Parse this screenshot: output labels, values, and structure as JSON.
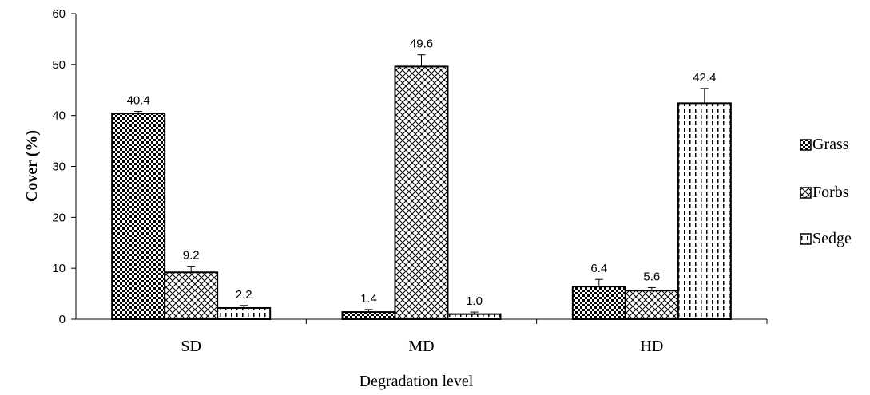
{
  "chart_data": {
    "type": "bar",
    "categories": [
      "SD",
      "MD",
      "HD"
    ],
    "series": [
      {
        "name": "Grass",
        "values": [
          40.4,
          1.4,
          6.4
        ],
        "errors": [
          0.4,
          0.5,
          1.4
        ],
        "labels": [
          "40.4",
          "1.4",
          "6.4"
        ]
      },
      {
        "name": "Forbs",
        "values": [
          9.2,
          49.6,
          5.6
        ],
        "errors": [
          1.2,
          2.3,
          0.6
        ],
        "labels": [
          "9.2",
          "49.6",
          "5.6"
        ]
      },
      {
        "name": "Sedge",
        "values": [
          2.2,
          1.0,
          42.4
        ],
        "errors": [
          0.5,
          0.4,
          2.9
        ],
        "labels": [
          "2.2",
          "1.0",
          "42.4"
        ]
      }
    ],
    "xlabel": "Degradation level",
    "ylabel": "Cover (%)",
    "ylim": [
      0,
      60
    ],
    "yticks": [
      0,
      10,
      20,
      30,
      40,
      50,
      60
    ],
    "grid": false,
    "legend_position": "right",
    "error_bars": true
  }
}
